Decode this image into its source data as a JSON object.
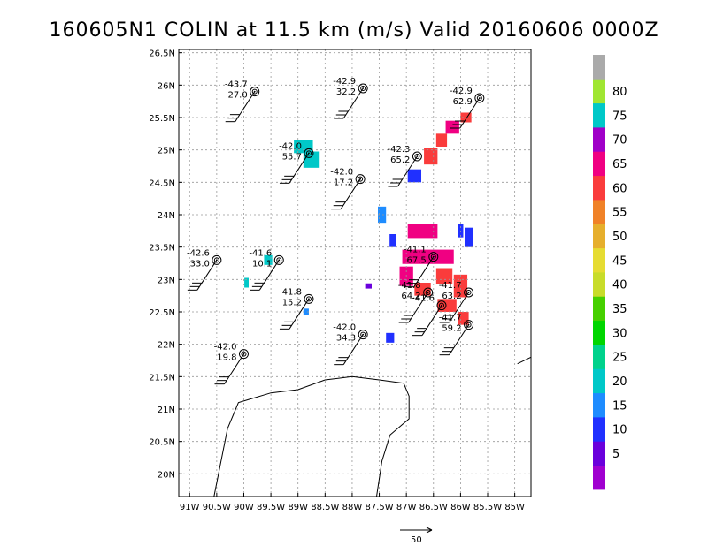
{
  "chart_data": {
    "type": "scatter",
    "title": "160605N1 COLIN at 11.5 km (m/s) Valid 20160606 0000Z",
    "x_ticks": [
      "91W",
      "90.5W",
      "90W",
      "89.5W",
      "89W",
      "88.5W",
      "88W",
      "87.5W",
      "87W",
      "86.5W",
      "86W",
      "85.5W",
      "85W"
    ],
    "y_ticks": [
      "20N",
      "20.5N",
      "21N",
      "21.5N",
      "22N",
      "22.5N",
      "23N",
      "23.5N",
      "24N",
      "24.5N",
      "25N",
      "25.5N",
      "26N",
      "26.5N"
    ],
    "xlim": [
      -91.2,
      -84.7
    ],
    "ylim": [
      19.65,
      26.55
    ],
    "grid": true,
    "coastline": [
      [
        [
          -90.55,
          19.65
        ],
        [
          -90.3,
          20.7
        ],
        [
          -90.1,
          21.1
        ],
        [
          -89.9,
          21.15
        ],
        [
          -89.5,
          21.25
        ],
        [
          -89.0,
          21.3
        ],
        [
          -88.5,
          21.45
        ],
        [
          -88.0,
          21.5
        ],
        [
          -87.5,
          21.45
        ],
        [
          -87.05,
          21.4
        ],
        [
          -86.95,
          21.2
        ],
        [
          -86.95,
          20.85
        ],
        [
          -87.3,
          20.6
        ],
        [
          -87.45,
          20.2
        ],
        [
          -87.55,
          19.65
        ]
      ],
      [
        [
          -84.95,
          21.7
        ],
        [
          -84.7,
          21.8
        ]
      ]
    ],
    "observations": [
      {
        "label": "-43.7",
        "value": "27.0",
        "lon": -89.8,
        "lat": 25.9
      },
      {
        "label": "-42.9",
        "value": "32.2",
        "lon": -87.8,
        "lat": 25.95
      },
      {
        "label": "-42.9",
        "value": "62.9",
        "lon": -85.65,
        "lat": 25.8
      },
      {
        "label": "-42.0",
        "value": "55.7",
        "lon": -88.8,
        "lat": 24.95
      },
      {
        "label": "-42.3",
        "value": "65.2",
        "lon": -86.8,
        "lat": 24.9
      },
      {
        "label": "-42.0",
        "value": "17.2",
        "lon": -87.85,
        "lat": 24.55
      },
      {
        "label": "-42.6",
        "value": "33.0",
        "lon": -90.5,
        "lat": 23.3
      },
      {
        "label": "-41.6",
        "value": "10.1",
        "lon": -89.35,
        "lat": 23.3
      },
      {
        "label": "-41.1",
        "value": "67.5",
        "lon": -86.5,
        "lat": 23.35
      },
      {
        "label": "-41.8",
        "value": "15.2",
        "lon": -88.8,
        "lat": 22.7
      },
      {
        "label": "-41.8",
        "value": "64.2",
        "lon": -86.6,
        "lat": 22.8
      },
      {
        "label": "-41.7",
        "value": "63.2",
        "lon": -85.85,
        "lat": 22.8
      },
      {
        "label": "-41.6",
        "value": "",
        "lon": -86.35,
        "lat": 22.6
      },
      {
        "label": "-41.7",
        "value": "59.2",
        "lon": -85.85,
        "lat": 22.3
      },
      {
        "label": "-42.0",
        "value": "34.3",
        "lon": -87.8,
        "lat": 22.15
      },
      {
        "label": "-42.0",
        "value": "19.8",
        "lon": -90.0,
        "lat": 21.85
      }
    ],
    "colorbar": {
      "labels": [
        "5",
        "10",
        "15",
        "20",
        "25",
        "30",
        "35",
        "40",
        "45",
        "50",
        "55",
        "60",
        "65",
        "70",
        "75",
        "80"
      ],
      "colors": [
        "#a000d0",
        "#6a00dc",
        "#2030ff",
        "#1e8cff",
        "#00c8c8",
        "#00d28c",
        "#00d600",
        "#46d000",
        "#c8dc2a",
        "#e6dc32",
        "#e6af2d",
        "#f08228",
        "#fa3c3c",
        "#f00082",
        "#a000c8",
        "#00c8c8",
        "#a0e632",
        "#aaaaaa"
      ]
    },
    "wind_cells": [
      {
        "lon": -88.9,
        "lat": 25.05,
        "speed": 22,
        "w": 0.35,
        "h": 0.2
      },
      {
        "lon": -88.75,
        "lat": 24.85,
        "speed": 22,
        "w": 0.3,
        "h": 0.25
      },
      {
        "lon": -89.55,
        "lat": 23.3,
        "speed": 22,
        "w": 0.15,
        "h": 0.15
      },
      {
        "lon": -89.95,
        "lat": 22.95,
        "speed": 22,
        "w": 0.08,
        "h": 0.15
      },
      {
        "lon": -88.85,
        "lat": 22.5,
        "speed": 18,
        "w": 0.1,
        "h": 0.1
      },
      {
        "lon": -87.7,
        "lat": 22.9,
        "speed": 5,
        "w": 0.12,
        "h": 0.08
      },
      {
        "lon": -87.3,
        "lat": 22.1,
        "speed": 12,
        "w": 0.15,
        "h": 0.15
      },
      {
        "lon": -87.45,
        "lat": 24.0,
        "speed": 15,
        "w": 0.15,
        "h": 0.25
      },
      {
        "lon": -87.25,
        "lat": 23.6,
        "speed": 12,
        "w": 0.12,
        "h": 0.2
      },
      {
        "lon": -86.85,
        "lat": 24.6,
        "speed": 10,
        "w": 0.25,
        "h": 0.2
      },
      {
        "lon": -86.55,
        "lat": 24.9,
        "speed": 62,
        "w": 0.25,
        "h": 0.25
      },
      {
        "lon": -86.35,
        "lat": 25.15,
        "speed": 62,
        "w": 0.2,
        "h": 0.2
      },
      {
        "lon": -86.15,
        "lat": 25.35,
        "speed": 65,
        "w": 0.25,
        "h": 0.2
      },
      {
        "lon": -85.9,
        "lat": 25.5,
        "speed": 62,
        "w": 0.2,
        "h": 0.15
      },
      {
        "lon": -86.7,
        "lat": 23.75,
        "speed": 65,
        "w": 0.55,
        "h": 0.22
      },
      {
        "lon": -86.6,
        "lat": 23.35,
        "speed": 65,
        "w": 0.95,
        "h": 0.22
      },
      {
        "lon": -87.0,
        "lat": 23.05,
        "speed": 65,
        "w": 0.25,
        "h": 0.3
      },
      {
        "lon": -86.7,
        "lat": 22.85,
        "speed": 62,
        "w": 0.3,
        "h": 0.2
      },
      {
        "lon": -86.3,
        "lat": 23.05,
        "speed": 62,
        "w": 0.3,
        "h": 0.25
      },
      {
        "lon": -86.0,
        "lat": 22.9,
        "speed": 62,
        "w": 0.25,
        "h": 0.35
      },
      {
        "lon": -86.25,
        "lat": 22.6,
        "speed": 62,
        "w": 0.35,
        "h": 0.2
      },
      {
        "lon": -85.95,
        "lat": 22.4,
        "speed": 62,
        "w": 0.2,
        "h": 0.2
      },
      {
        "lon": -86.0,
        "lat": 23.75,
        "speed": 12,
        "w": 0.1,
        "h": 0.2
      },
      {
        "lon": -85.85,
        "lat": 23.65,
        "speed": 12,
        "w": 0.15,
        "h": 0.3
      }
    ],
    "scale_vector": {
      "label": "50"
    }
  }
}
